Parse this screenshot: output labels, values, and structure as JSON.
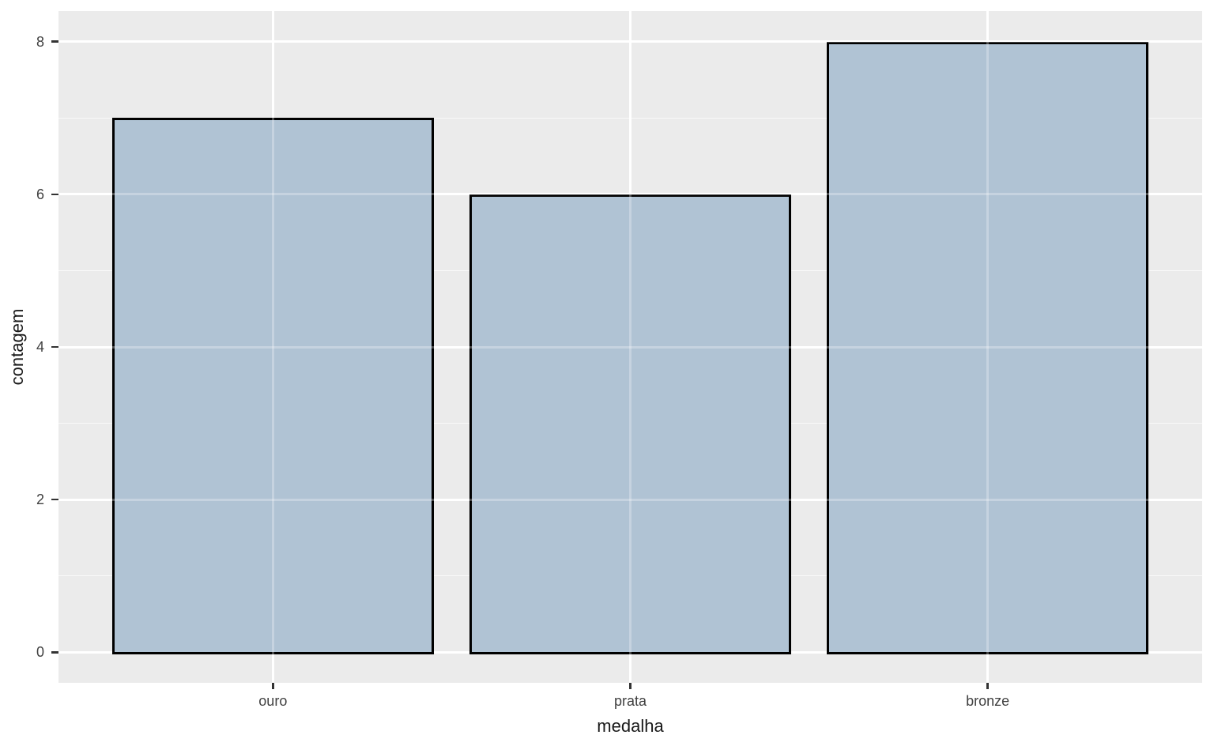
{
  "chart_data": {
    "type": "bar",
    "categories": [
      "ouro",
      "prata",
      "bronze"
    ],
    "values": [
      7,
      6,
      8
    ],
    "title": "",
    "xlabel": "medalha",
    "ylabel": "contagem",
    "yticks": [
      0,
      2,
      4,
      6,
      8
    ],
    "ylim": [
      0,
      8
    ],
    "y_expansion": 0.4,
    "bar_width_fraction": 0.9,
    "grid": "on",
    "legend": "none",
    "colors": {
      "panel_background": "#EBEBEB",
      "grid_major": "#FFFFFF",
      "grid_minor_rgba": "rgba(255,255,255,0.7)",
      "grid_over_bar_rgba": "rgba(255,255,255,0.28)",
      "bar_fill": "#B0C3D4",
      "bar_stroke": "#000000",
      "tick_label": "#404040",
      "axis_title": "#1A1A1A",
      "tick_mark": "#333333",
      "figure_background": "#FFFFFF"
    }
  }
}
